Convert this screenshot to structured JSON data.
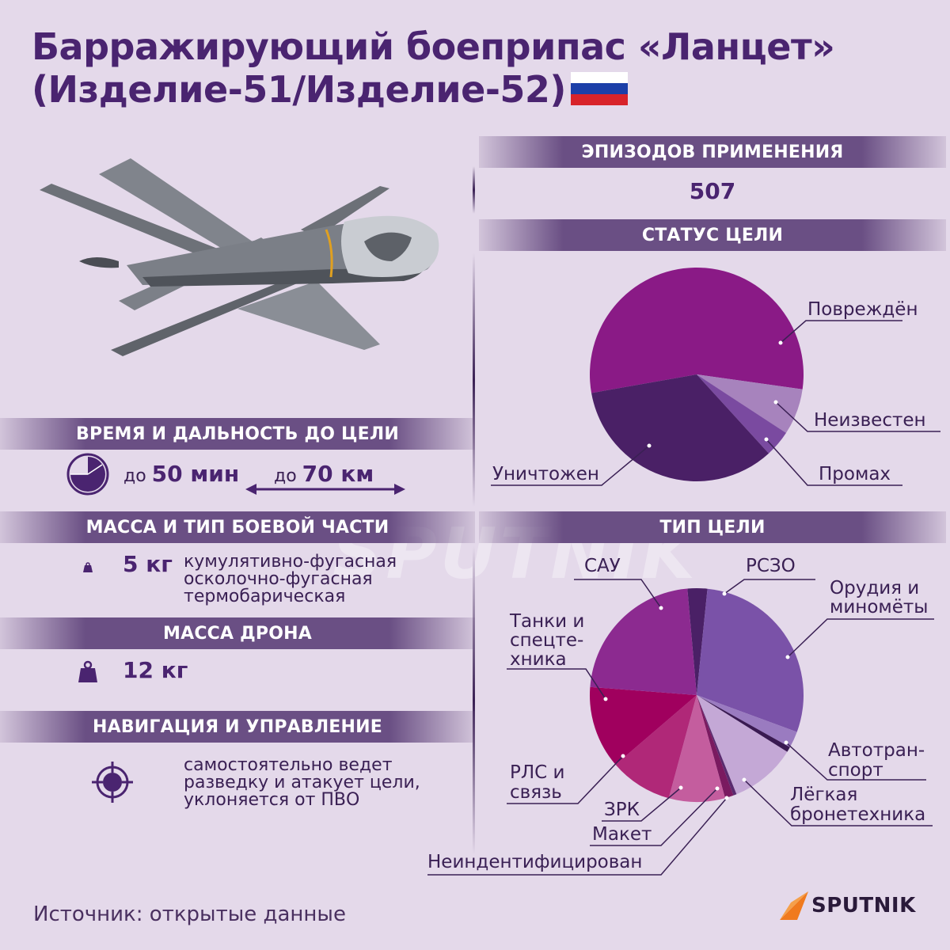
{
  "title_line1": "Барражирующий боеприпас «Ланцет»",
  "title_line2": "(Изделие-51/Изделие-52)",
  "flag_icon": "russia-flag-icon",
  "colors": {
    "title": "#4a2470",
    "band": "#6a4f84",
    "background": "#e4d9ea"
  },
  "episodes": {
    "header": "ЭПИЗОДОВ ПРИМЕНЕНИЯ",
    "value": "507"
  },
  "target_status": {
    "header": "СТАТУС ЦЕЛИ"
  },
  "target_type": {
    "header": "ТИП ЦЕЛИ"
  },
  "time_range": {
    "header": "ВРЕМЯ И ДАЛЬНОСТЬ ДО ЦЕЛИ",
    "time_prefix": "до",
    "time_value": "50 мин",
    "range_prefix": "до",
    "range_value": "70 км"
  },
  "warhead": {
    "header": "МАССА И ТИП БОЕВОЙ ЧАСТИ",
    "mass": "5 кг",
    "types": [
      "кумулятивно-фугасная",
      "осколочно-фугасная",
      "термобарическая"
    ]
  },
  "drone_mass": {
    "header": "МАССА ДРОНА",
    "value": "12 кг"
  },
  "navigation": {
    "header": "НАВИГАЦИЯ И УПРАВЛЕНИЕ",
    "lines": [
      "самостоятельно ведет",
      "разведку и атакует цели,",
      "уклоняется от ПВО"
    ]
  },
  "source": "Источник: открытые данные",
  "brand": "SPUTNIK",
  "watermark": "SPUTNIK",
  "chart_data": [
    {
      "type": "pie",
      "title": "СТАТУС ЦЕЛИ",
      "slices": [
        {
          "label": "Повреждён",
          "value": 55,
          "color": "#8a1a86"
        },
        {
          "label": "Неизвестен",
          "value": 7,
          "color": "#a783bd"
        },
        {
          "label": "Промах",
          "value": 4,
          "color": "#7a4aa0"
        },
        {
          "label": "Уничтожен",
          "value": 34,
          "color": "#4a2066"
        }
      ]
    },
    {
      "type": "pie",
      "title": "ТИП ЦЕЛИ",
      "slices": [
        {
          "label": "РСЗО",
          "value": 3,
          "color": "#4a2066"
        },
        {
          "label": "Орудия и миномёты",
          "value": 29,
          "color": "#7a52a8"
        },
        {
          "label": "Автотранспорт",
          "value": 2.5,
          "color": "#9a7bc0"
        },
        {
          "label": "",
          "value": 0.8,
          "color": "#3a1a52"
        },
        {
          "label": "Лёгкая бронетехника",
          "value": 10,
          "color": "#c4a8d6"
        },
        {
          "label": "Неиндентифицирован",
          "value": 0.5,
          "color": "#5a2a6e"
        },
        {
          "label": "Макет",
          "value": 1.3,
          "color": "#7a1a60"
        },
        {
          "label": "ЗРК",
          "value": 8.5,
          "color": "#c45d9e"
        },
        {
          "label": "РЛС и связь",
          "value": 9.5,
          "color": "#b02878"
        },
        {
          "label": "Танки и спецтехника",
          "value": 12.5,
          "color": "#a0005e"
        },
        {
          "label": "САУ",
          "value": 22.4,
          "color": "#8c2a90"
        }
      ]
    }
  ]
}
